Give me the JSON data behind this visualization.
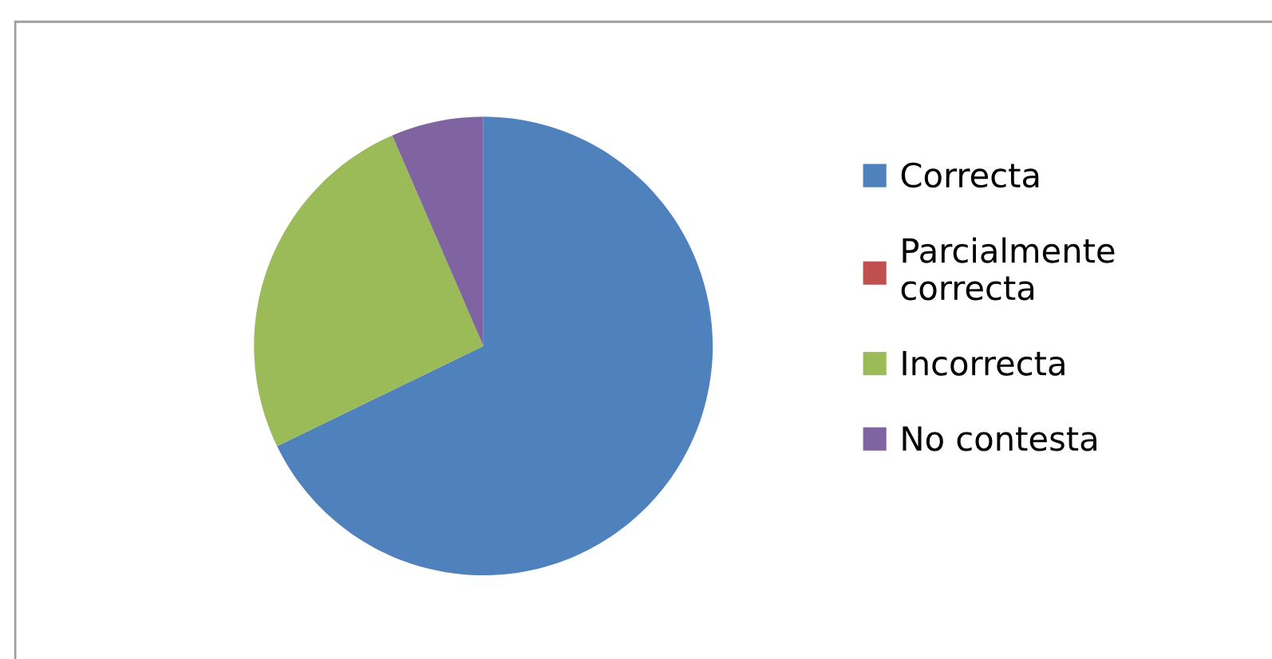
{
  "chart_data": {
    "type": "pie",
    "categories": [
      "Correcta",
      "Parcialmente correcta",
      "Incorrecta",
      "No contesta"
    ],
    "values": [
      67.8,
      0,
      25.7,
      6.5
    ],
    "colors": [
      "#4f81bd",
      "#c0504d",
      "#9bbb59",
      "#8064a2"
    ],
    "legend": "right"
  }
}
